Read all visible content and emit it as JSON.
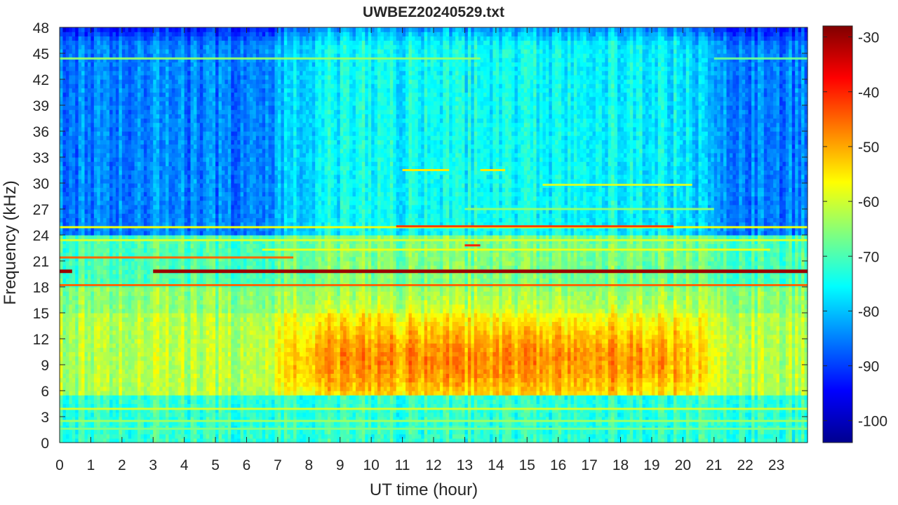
{
  "chart_data": {
    "type": "heatmap",
    "title": "UWBEZ20240529.txt",
    "xlabel": "UT time (hour)",
    "ylabel": "Frequency (kHz)",
    "xlim": [
      0,
      24
    ],
    "ylim": [
      0,
      48
    ],
    "x_ticks": [
      "0",
      "1",
      "2",
      "3",
      "4",
      "5",
      "6",
      "7",
      "8",
      "9",
      "10",
      "11",
      "12",
      "13",
      "14",
      "15",
      "16",
      "17",
      "18",
      "19",
      "20",
      "21",
      "22",
      "23"
    ],
    "y_ticks": [
      "0",
      "3",
      "6",
      "9",
      "12",
      "15",
      "18",
      "21",
      "24",
      "27",
      "30",
      "33",
      "36",
      "39",
      "42",
      "45",
      "48"
    ],
    "colorbar": {
      "colormap": "jet",
      "clim": [
        -104,
        -28
      ],
      "ticks": [
        "-100",
        "-90",
        "-80",
        "-70",
        "-60",
        "-50",
        "-40",
        "-30"
      ]
    },
    "approximate_levels_dB": {
      "upper_band_24_to_48_kHz": {
        "night_hours_0_to_7_and_21_to_24": -85,
        "day_hours_7_to_21": -75
      },
      "mid_band_6_to_18_kHz": {
        "night": -62,
        "day_peak_near_9_kHz": -48
      },
      "low_band_0_to_6_kHz": -72
    },
    "narrowband_lines": [
      {
        "frequency_kHz": 19.8,
        "start_hour": 0.0,
        "end_hour": 0.4,
        "level_dB": -30
      },
      {
        "frequency_kHz": 19.8,
        "start_hour": 3.0,
        "end_hour": 24.0,
        "level_dB": -30
      },
      {
        "frequency_kHz": 21.4,
        "start_hour": 0.0,
        "end_hour": 7.5,
        "level_dB": -45
      },
      {
        "frequency_kHz": 18.2,
        "start_hour": 0.0,
        "end_hour": 24.0,
        "level_dB": -45
      },
      {
        "frequency_kHz": 24.9,
        "start_hour": 0.0,
        "end_hour": 24.0,
        "level_dB": -58
      },
      {
        "frequency_kHz": 25.0,
        "start_hour": 10.8,
        "end_hour": 19.7,
        "level_dB": -42
      },
      {
        "frequency_kHz": 23.4,
        "start_hour": 0.0,
        "end_hour": 24.0,
        "level_dB": -60
      },
      {
        "frequency_kHz": 22.3,
        "start_hour": 6.5,
        "end_hour": 22.8,
        "level_dB": -58
      },
      {
        "frequency_kHz": 22.8,
        "start_hour": 13.0,
        "end_hour": 13.5,
        "level_dB": -40
      },
      {
        "frequency_kHz": 44.4,
        "start_hour": 0.0,
        "end_hour": 13.5,
        "level_dB": -65
      },
      {
        "frequency_kHz": 44.4,
        "start_hour": 21.0,
        "end_hour": 24.0,
        "level_dB": -68
      },
      {
        "frequency_kHz": 31.5,
        "start_hour": 11.0,
        "end_hour": 12.5,
        "level_dB": -55
      },
      {
        "frequency_kHz": 31.5,
        "start_hour": 13.5,
        "end_hour": 14.3,
        "level_dB": -55
      },
      {
        "frequency_kHz": 29.8,
        "start_hour": 15.5,
        "end_hour": 20.3,
        "level_dB": -60
      },
      {
        "frequency_kHz": 27.0,
        "start_hour": 13.0,
        "end_hour": 21.0,
        "level_dB": -65
      },
      {
        "frequency_kHz": 3.9,
        "start_hour": 0.0,
        "end_hour": 24.0,
        "level_dB": -60
      },
      {
        "frequency_kHz": 2.5,
        "start_hour": 0.0,
        "end_hour": 24.0,
        "level_dB": -64
      },
      {
        "frequency_kHz": 1.6,
        "start_hour": 0.0,
        "end_hour": 24.0,
        "level_dB": -66
      }
    ]
  }
}
